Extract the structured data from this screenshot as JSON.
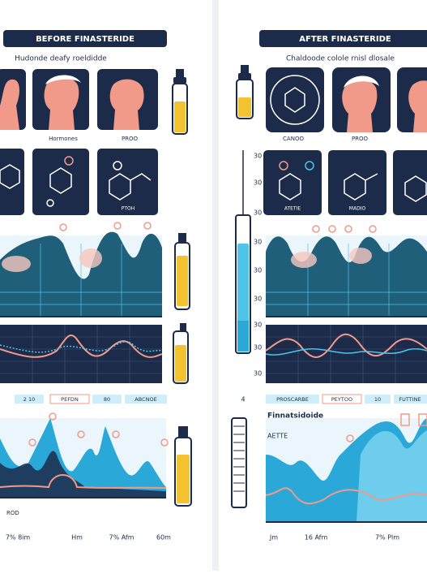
{
  "left": {
    "title": "BEFORE FINASTERIDE",
    "subtitle": "Hudonde deafy roeldidde",
    "captions": [
      "Hormones",
      "PROO"
    ],
    "molecule_caption": "PTOH",
    "tags": [
      "2 10",
      "PEFDN",
      "80",
      "ABCNOE"
    ],
    "side_label": "ROD",
    "x_labels": [
      "7% 8im",
      "Hm",
      "7% Afm",
      "60m"
    ]
  },
  "right": {
    "title": "AFTER FINASTERIDE",
    "subtitle": "Chaldoode colole rnisl dlosale",
    "captions": [
      "CANOO",
      "PROO"
    ],
    "molecule_captions": [
      "ATETIE",
      "MADIO"
    ],
    "axis_labels": [
      "30",
      "30",
      "30",
      "30",
      "30",
      "30",
      "30",
      "30",
      "30"
    ],
    "tags": [
      "PROSCARBE",
      "PEYTOO",
      "10",
      "FUTTINE"
    ],
    "tag_axis": "4",
    "legend": [
      "Finnatsidoide",
      "AETTE"
    ],
    "x_labels": [
      "Jm",
      "16 Afm",
      "7% Plm"
    ]
  }
}
